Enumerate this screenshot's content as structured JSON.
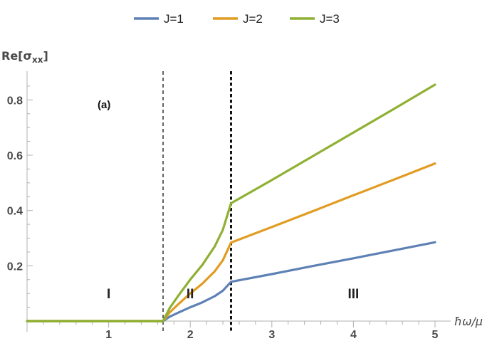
{
  "chart_data": {
    "type": "line",
    "ylabel": "Re[σxx]",
    "xlabel": "ħω/μ",
    "annotation": "(a)",
    "xlim": [
      0,
      5
    ],
    "ylim": [
      0,
      0.9
    ],
    "x_ticks": [
      1,
      2,
      3,
      4,
      5
    ],
    "y_ticks": [
      0.2,
      0.4,
      0.6,
      0.8
    ],
    "x_tick_labels": [
      "1",
      "2",
      "3",
      "4",
      "5"
    ],
    "y_tick_labels": [
      "0.2",
      "0.4",
      "0.6",
      "0.8"
    ],
    "grid": false,
    "legend_position": "top-center",
    "vertical_lines": [
      {
        "x": 1.667,
        "style": "dashed"
      },
      {
        "x": 2.5,
        "style": "dotted-bold"
      }
    ],
    "regions": [
      {
        "label": "I",
        "x": 1.0,
        "y": 0.1
      },
      {
        "label": "II",
        "x": 2.0,
        "y": 0.1
      },
      {
        "label": "III",
        "x": 4.0,
        "y": 0.1
      }
    ],
    "series": [
      {
        "name": "J=1",
        "color": "#5e81b5",
        "x": [
          0,
          1.667,
          1.75,
          1.85,
          2.0,
          2.15,
          2.3,
          2.4,
          2.5,
          3.0,
          3.5,
          4.0,
          4.5,
          5.0
        ],
        "y": [
          0,
          0,
          0.016,
          0.03,
          0.05,
          0.068,
          0.09,
          0.11,
          0.142,
          0.17,
          0.199,
          0.227,
          0.256,
          0.285
        ]
      },
      {
        "name": "J=2",
        "color": "#e19c24",
        "x": [
          0,
          1.667,
          1.75,
          1.85,
          2.0,
          2.15,
          2.3,
          2.4,
          2.5,
          3.0,
          3.5,
          4.0,
          4.5,
          5.0
        ],
        "y": [
          0,
          0,
          0.032,
          0.06,
          0.1,
          0.136,
          0.18,
          0.22,
          0.284,
          0.34,
          0.397,
          0.455,
          0.512,
          0.57
        ]
      },
      {
        "name": "J=3",
        "color": "#8fb032",
        "x": [
          0,
          1.667,
          1.75,
          1.85,
          2.0,
          2.15,
          2.3,
          2.4,
          2.5,
          3.0,
          3.5,
          4.0,
          4.5,
          5.0
        ],
        "y": [
          0,
          0,
          0.048,
          0.09,
          0.15,
          0.204,
          0.27,
          0.33,
          0.426,
          0.51,
          0.596,
          0.682,
          0.768,
          0.855
        ]
      }
    ]
  }
}
